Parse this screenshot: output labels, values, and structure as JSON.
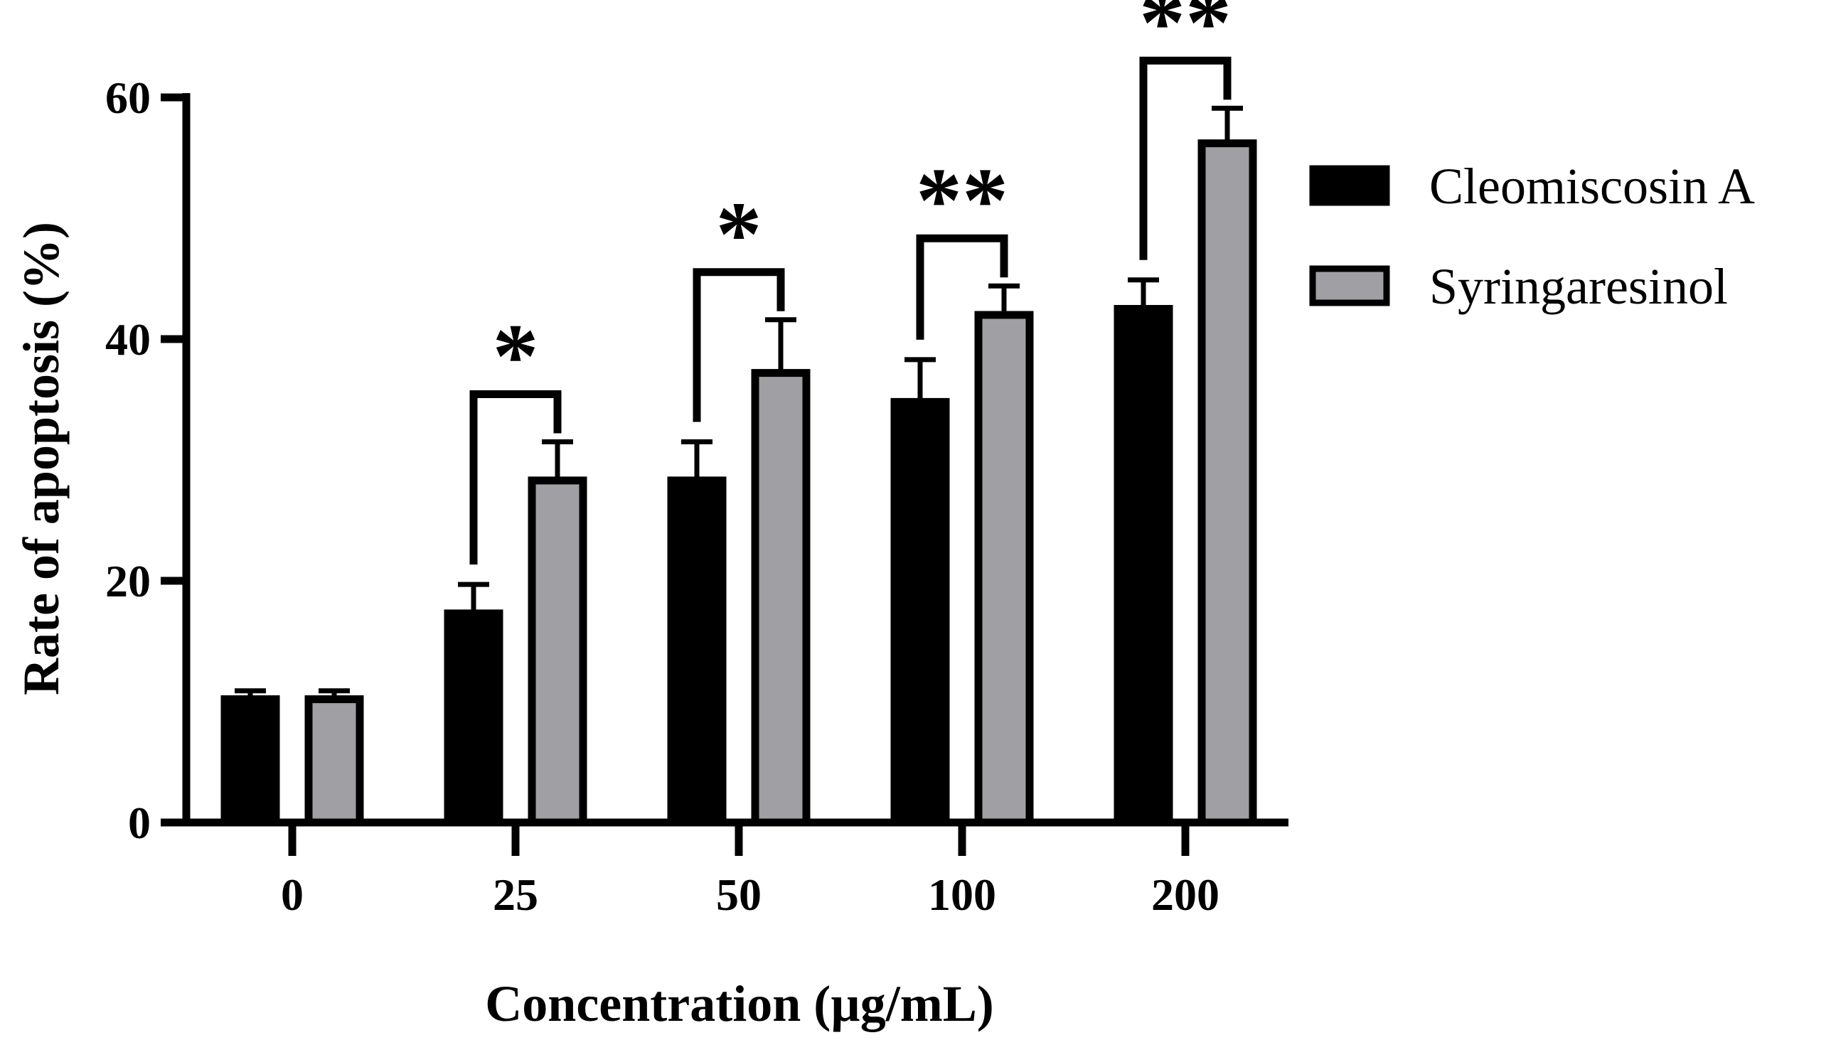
{
  "chart_data": {
    "type": "bar",
    "title": "",
    "xlabel": "Concentration (µg/mL)",
    "ylabel": "Rate of apoptosis (%)",
    "categories": [
      "0",
      "25",
      "50",
      "100",
      "200"
    ],
    "ylim": [
      0,
      60
    ],
    "yticks": [
      "0",
      "20",
      "40",
      "60"
    ],
    "grid": false,
    "legend_position": "right",
    "series": [
      {
        "name": "Cleomiscosin A",
        "color": "#000000",
        "values": [
          10.2,
          17.3,
          28.3,
          34.8,
          42.5
        ],
        "errors": [
          0.7,
          2.4,
          3.2,
          3.5,
          2.4
        ]
      },
      {
        "name": "Syringaresinol",
        "color": "#a0a0a4",
        "values": [
          10.2,
          28.3,
          37.2,
          42.0,
          56.2
        ],
        "errors": [
          0.7,
          3.2,
          4.4,
          2.4,
          2.9
        ]
      }
    ],
    "significance": [
      "",
      "*",
      "*",
      "**",
      "**"
    ]
  }
}
